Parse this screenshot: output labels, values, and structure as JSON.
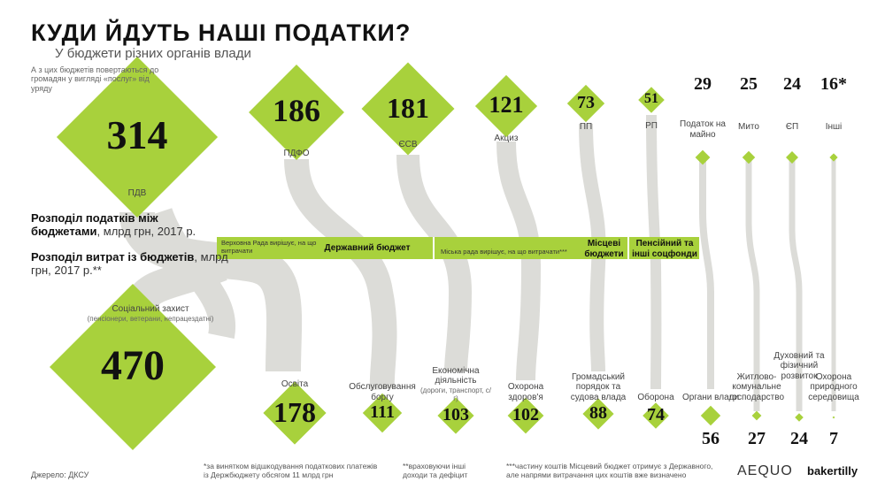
{
  "title": "КУДИ ЙДУТЬ НАШІ ПОДАТКИ?",
  "subtitle": "У бюджети різних органів влади",
  "intro_note": "А з цих бюджетів повертаються до громадян у вигляді «послуг» від уряду",
  "revenue_caption": {
    "bold": "Розподіл податків між бюджетами",
    "rest": ", млрд грн, 2017 р."
  },
  "spending_caption": {
    "bold": "Розподіл витрат із бюджетів",
    "rest": ", млрд грн, 2017 р.**"
  },
  "budgets": {
    "state_note": "Верховна Рада вирішує, на що витрачати",
    "state": "Державний бюджет",
    "local_note": "Міська рада вирішує, на що витрачати***",
    "local": "Місцеві бюджети",
    "pension": "Пенсійний та інші соцфонди"
  },
  "chart_data": [
    {
      "type": "diamond",
      "categories": [
        "ПДВ",
        "ПДФО",
        "ЄСВ",
        "Акциз",
        "ПП",
        "РП",
        "Податок на майно",
        "Мито",
        "ЄП",
        "Інші"
      ],
      "values": [
        314,
        186,
        181,
        121,
        73,
        51,
        29,
        25,
        24,
        16
      ],
      "value_labels": [
        "314",
        "186",
        "181",
        "121",
        "73",
        "51",
        "29",
        "25",
        "24",
        "16*"
      ],
      "color": "#a8d13c"
    },
    {
      "type": "diamond",
      "categories": [
        "Соціальний захист",
        "Освіта",
        "Обслуговування боргу",
        "Економічна діяльність",
        "Охорона здоров'я",
        "Громадський порядок та судова влада",
        "Оборона",
        "Органи влади",
        "Житлово-комунальне господарство",
        "Духовний та фізичний розвиток",
        "Охорона природного середовища"
      ],
      "category_notes": [
        "(пенсіонери, ветерани, непрацездатні)",
        null,
        null,
        "(дороги, транспорт, с/г)",
        null,
        null,
        null,
        null,
        null,
        null,
        null
      ],
      "values": [
        470,
        178,
        111,
        103,
        102,
        88,
        74,
        56,
        27,
        24,
        7
      ],
      "color": "#a8d13c"
    }
  ],
  "footnotes": {
    "source": "Джерело: ДКСУ",
    "note1": "*за винятком відшкодування податкових платежів із Держбюджету обсягом 11 млрд грн",
    "note2": "**враховуючи інші доходи та дефіцит",
    "note3": "***частину коштів Місцевий бюджет отримує з Державного, але напрями витрачання цих коштів вже визначено"
  },
  "logos": {
    "left": "AEQUO",
    "right": "bakertilly"
  }
}
